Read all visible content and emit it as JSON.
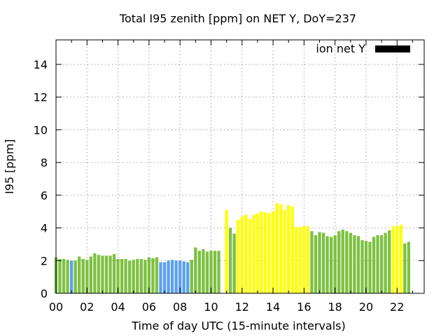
{
  "chart_data": {
    "type": "bar",
    "title": "Total I95 zenith [ppm] on NET Y, DoY=237",
    "xlabel": "Time of day UTC (15-minute intervals)",
    "ylabel": "I95 [ppm]",
    "xlim": [
      0,
      23.75
    ],
    "ylim": [
      0,
      15.5
    ],
    "x_ticks": [
      0,
      2,
      4,
      6,
      8,
      10,
      12,
      14,
      16,
      18,
      20,
      22
    ],
    "x_tick_labels": [
      "00",
      "02",
      "04",
      "06",
      "08",
      "10",
      "12",
      "14",
      "16",
      "18",
      "20",
      "22"
    ],
    "y_ticks": [
      0,
      2,
      4,
      6,
      8,
      10,
      12,
      14
    ],
    "grid": true,
    "legend": {
      "label": "ion net Y",
      "color": "#000000",
      "position": "top-right"
    },
    "bar_colors": {
      "G": "#7dc142",
      "B": "#5aa0f0",
      "Y": "#ffff00"
    },
    "series": [
      {
        "interval_hours": 0.25,
        "values": [
          2.2,
          2.1,
          2.1,
          2.05,
          2.0,
          2.0,
          2.25,
          2.1,
          2.05,
          2.25,
          2.45,
          2.35,
          2.3,
          2.3,
          2.3,
          2.4,
          2.1,
          2.1,
          2.1,
          2.0,
          2.05,
          2.1,
          2.1,
          2.05,
          2.2,
          2.15,
          2.2,
          1.9,
          1.9,
          2.0,
          2.05,
          2.0,
          2.0,
          1.95,
          1.9,
          2.05,
          2.8,
          2.6,
          2.7,
          2.55,
          2.6,
          2.6,
          2.6,
          null,
          5.1,
          4.0,
          3.65,
          4.5,
          4.7,
          4.8,
          4.55,
          4.8,
          4.9,
          5.0,
          4.95,
          4.9,
          5.0,
          5.5,
          5.45,
          5.1,
          5.4,
          5.3,
          4.05,
          4.05,
          4.1,
          4.1,
          3.8,
          3.55,
          3.75,
          3.7,
          3.5,
          3.45,
          3.55,
          3.8,
          3.9,
          3.8,
          3.7,
          3.55,
          3.5,
          3.25,
          3.2,
          3.15,
          3.45,
          3.55,
          3.55,
          3.7,
          3.85,
          4.1,
          4.1,
          4.2,
          3.05,
          3.15
        ],
        "colors": [
          "G",
          "G",
          "G",
          "G",
          "B",
          "G",
          "G",
          "G",
          "G",
          "G",
          "G",
          "G",
          "G",
          "G",
          "G",
          "G",
          "G",
          "G",
          "G",
          "G",
          "G",
          "G",
          "G",
          "G",
          "G",
          "G",
          "G",
          "B",
          "B",
          "B",
          "B",
          "B",
          "B",
          "B",
          "B",
          "G",
          "G",
          "G",
          "G",
          "G",
          "G",
          "G",
          "G",
          "G",
          "Y",
          "G",
          "G",
          "Y",
          "Y",
          "Y",
          "Y",
          "Y",
          "Y",
          "Y",
          "Y",
          "Y",
          "Y",
          "Y",
          "Y",
          "Y",
          "Y",
          "Y",
          "Y",
          "Y",
          "Y",
          "Y",
          "G",
          "G",
          "G",
          "G",
          "G",
          "G",
          "G",
          "G",
          "G",
          "G",
          "G",
          "G",
          "G",
          "G",
          "G",
          "G",
          "G",
          "G",
          "G",
          "G",
          "G",
          "Y",
          "Y",
          "Y",
          "G",
          "G"
        ]
      }
    ]
  }
}
